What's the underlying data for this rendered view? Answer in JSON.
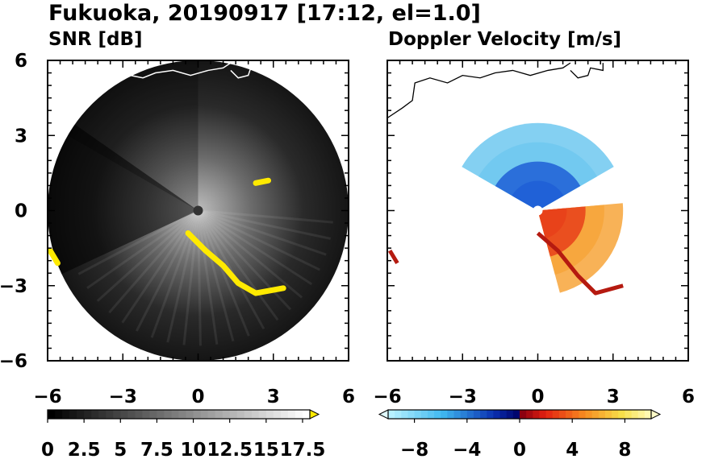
{
  "title": "Fukuoka, 20190917 [17:12, el=1.0]",
  "chart_data": [
    {
      "type": "heatmap",
      "title": "SNR [dB]",
      "xlim": [
        -6,
        6
      ],
      "ylim": [
        -6,
        6
      ],
      "x_ticks": [
        "−6",
        "−3",
        "0",
        "3",
        "6"
      ],
      "y_ticks": [
        "6",
        "3",
        "0",
        "−3",
        "−6"
      ],
      "x_tick_values": [
        -6,
        -3,
        0,
        3,
        6
      ],
      "y_tick_values": [
        6,
        3,
        0,
        -3,
        -6
      ],
      "range_ring_radius": 6,
      "colorbar": {
        "min": 0,
        "max": 18,
        "extend": "max",
        "levels": 36,
        "colors": [
          "#000000",
          "#ffffff"
        ],
        "over_color": "#ffea00",
        "tick_labels": [
          "0",
          "2.5",
          "5",
          "7.5",
          "10",
          "12.5",
          "15",
          "17.5"
        ],
        "tick_values": [
          0,
          2.5,
          5,
          7.5,
          10,
          12.5,
          15,
          17.5
        ]
      },
      "highlights": [
        {
          "name": "coastline-echo",
          "color": "#ffea00",
          "points": [
            [
              -0.4,
              -0.9
            ],
            [
              0.3,
              -1.6
            ],
            [
              1.0,
              -2.2
            ],
            [
              1.6,
              -2.9
            ],
            [
              2.3,
              -3.3
            ],
            [
              3.4,
              -3.1
            ]
          ]
        },
        {
          "name": "northeast-echo",
          "color": "#ffea00",
          "points": [
            [
              2.3,
              1.1
            ],
            [
              2.8,
              1.2
            ]
          ]
        },
        {
          "name": "southwest-echo",
          "color": "#ffea00",
          "points": [
            [
              -5.9,
              -1.6
            ],
            [
              -5.6,
              -2.1
            ]
          ]
        }
      ]
    },
    {
      "type": "heatmap",
      "title": "Doppler Velocity [m/s]",
      "xlim": [
        -6,
        6
      ],
      "ylim": [
        -6,
        6
      ],
      "x_ticks": [
        "−6",
        "−3",
        "0",
        "3",
        "6"
      ],
      "y_ticks": [
        "6",
        "3",
        "0",
        "−3",
        "−6"
      ],
      "x_tick_values": [
        -6,
        -3,
        0,
        3,
        6
      ],
      "y_tick_values": [
        6,
        3,
        0,
        -3,
        -6
      ],
      "colorbar": {
        "min": -10,
        "max": 10,
        "extend": "both",
        "levels": 40,
        "under_color": "#e0fbff",
        "over_color": "#fffcc8",
        "tick_labels": [
          "−8",
          "−4",
          "0",
          "4",
          "8"
        ],
        "tick_values": [
          -8,
          -4,
          0,
          4,
          8
        ]
      },
      "velocity_sectors": [
        {
          "name": "approaching-sector",
          "az_start_deg": 300,
          "az_end_deg": 60,
          "r_max": 3.5,
          "v": -6
        },
        {
          "name": "receding-sector",
          "az_start_deg": 85,
          "az_end_deg": 165,
          "r_max": 3.4,
          "v": 6
        }
      ]
    }
  ]
}
